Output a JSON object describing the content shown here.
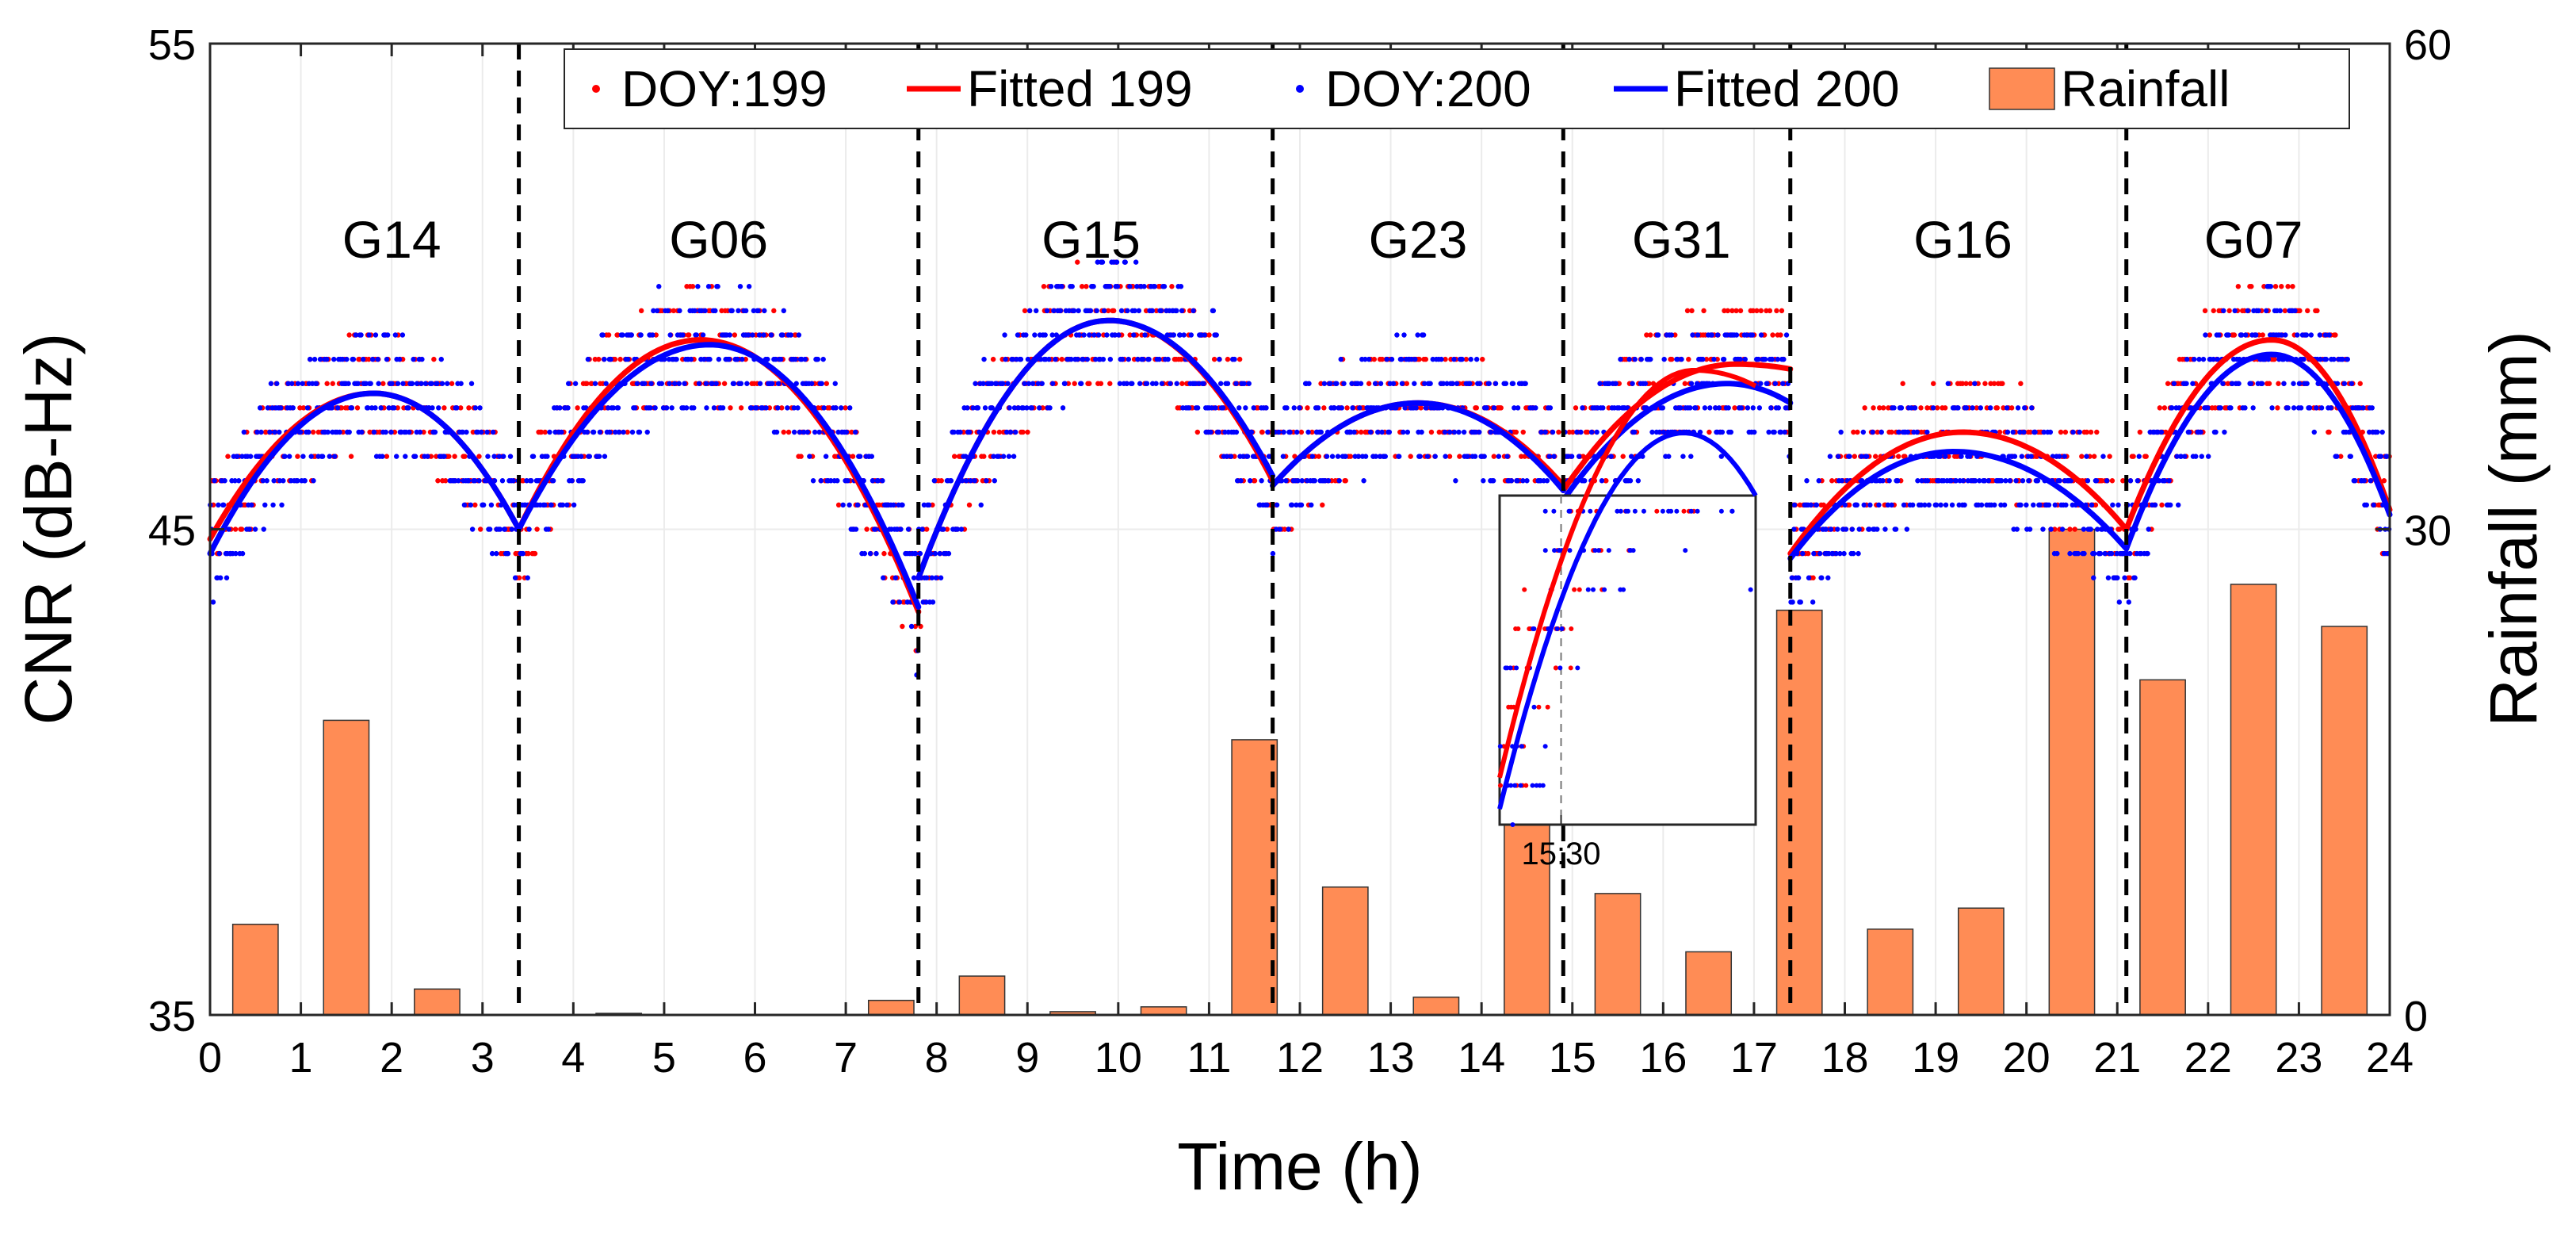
{
  "chart_data": {
    "type": "scatter+line+bar",
    "x_axis": {
      "label": "Time (h)",
      "range": [
        0,
        24
      ],
      "ticks": [
        0,
        1,
        2,
        3,
        4,
        5,
        6,
        7,
        8,
        9,
        10,
        11,
        12,
        13,
        14,
        15,
        16,
        17,
        18,
        19,
        20,
        21,
        22,
        23,
        24
      ]
    },
    "y_left": {
      "label": "CNR (dB-Hz)",
      "range": [
        35,
        55
      ],
      "ticks": [
        35,
        45,
        55
      ]
    },
    "y_right": {
      "label": "Rainfall (mm)",
      "range": [
        0,
        60
      ],
      "ticks": [
        0,
        30,
        60
      ]
    },
    "satellite_boundaries": [
      3.4,
      7.8,
      11.7,
      14.9,
      17.4,
      21.1
    ],
    "satellites": [
      {
        "label": "G14",
        "x": 2.0
      },
      {
        "label": "G06",
        "x": 5.6
      },
      {
        "label": "G15",
        "x": 9.7
      },
      {
        "label": "G23",
        "x": 13.3
      },
      {
        "label": "G31",
        "x": 16.2
      },
      {
        "label": "G16",
        "x": 19.3
      },
      {
        "label": "G07",
        "x": 22.5
      }
    ],
    "fitted_199": {
      "name": "Fitted 199",
      "color": "#ff0000",
      "segments": [
        {
          "start": 0.0,
          "end": 3.4,
          "vertex_x": 1.8,
          "peak": 47.8,
          "start_y": 44.8,
          "end_y": 45.0
        },
        {
          "start": 3.4,
          "end": 7.8,
          "vertex_x": 5.4,
          "peak": 48.9,
          "start_y": 45.0,
          "end_y": 43.3
        },
        {
          "start": 7.8,
          "end": 11.7,
          "vertex_x": 9.9,
          "peak": 49.3,
          "start_y": 44.0,
          "end_y": 46.0
        },
        {
          "start": 11.7,
          "end": 14.9,
          "vertex_x": 13.3,
          "peak": 47.6,
          "start_y": 45.9,
          "end_y": 45.9
        },
        {
          "start": 14.9,
          "end": 17.4,
          "vertex_x": 16.8,
          "peak": 48.4,
          "start_y": 45.8,
          "end_y": 48.3
        },
        {
          "start": 17.4,
          "end": 21.1,
          "vertex_x": 19.3,
          "peak": 47.0,
          "start_y": 44.5,
          "end_y": 45.0
        },
        {
          "start": 21.1,
          "end": 24.0,
          "vertex_x": 22.7,
          "peak": 48.9,
          "start_y": 45.0,
          "end_y": 45.4
        }
      ]
    },
    "fitted_200": {
      "name": "Fitted 200",
      "color": "#0000ff",
      "segments": [
        {
          "start": 0.0,
          "end": 3.4,
          "vertex_x": 1.8,
          "peak": 47.8,
          "start_y": 44.5,
          "end_y": 45.0
        },
        {
          "start": 3.4,
          "end": 7.8,
          "vertex_x": 5.5,
          "peak": 48.8,
          "start_y": 45.0,
          "end_y": 43.4
        },
        {
          "start": 7.8,
          "end": 11.7,
          "vertex_x": 9.9,
          "peak": 49.3,
          "start_y": 44.0,
          "end_y": 46.1
        },
        {
          "start": 11.7,
          "end": 14.9,
          "vertex_x": 13.3,
          "peak": 47.6,
          "start_y": 45.9,
          "end_y": 45.8
        },
        {
          "start": 14.9,
          "end": 17.4,
          "vertex_x": 16.7,
          "peak": 48.0,
          "start_y": 45.6,
          "end_y": 47.6
        },
        {
          "start": 17.4,
          "end": 21.1,
          "vertex_x": 19.2,
          "peak": 46.6,
          "start_y": 44.4,
          "end_y": 44.6
        },
        {
          "start": 21.1,
          "end": 24.0,
          "vertex_x": 22.7,
          "peak": 48.6,
          "start_y": 44.6,
          "end_y": 45.3
        }
      ]
    },
    "scatter_199": {
      "name": "DOY:199",
      "color": "#ff0000",
      "spread_db": 1.2,
      "samples_per_hour": 70
    },
    "scatter_200": {
      "name": "DOY:200",
      "color": "#0000ff",
      "spread_db": 1.3,
      "samples_per_hour": 90
    },
    "rainfall": {
      "name": "Rainfall",
      "unit": "mm",
      "color": "#ff8c55",
      "bar_width_h": 0.5,
      "bars": [
        {
          "x": 0.5,
          "value": 5.6
        },
        {
          "x": 1.5,
          "value": 18.2
        },
        {
          "x": 2.5,
          "value": 1.6
        },
        {
          "x": 4.5,
          "value": 0.1
        },
        {
          "x": 7.5,
          "value": 0.9
        },
        {
          "x": 8.5,
          "value": 2.4
        },
        {
          "x": 9.5,
          "value": 0.2
        },
        {
          "x": 10.5,
          "value": 0.5
        },
        {
          "x": 11.5,
          "value": 17.0
        },
        {
          "x": 12.5,
          "value": 7.9
        },
        {
          "x": 13.5,
          "value": 1.1
        },
        {
          "x": 14.5,
          "value": 12.8
        },
        {
          "x": 15.5,
          "value": 7.5
        },
        {
          "x": 16.5,
          "value": 3.9
        },
        {
          "x": 17.5,
          "value": 25.0
        },
        {
          "x": 18.5,
          "value": 5.3
        },
        {
          "x": 19.5,
          "value": 6.6
        },
        {
          "x": 20.5,
          "value": 30.0
        },
        {
          "x": 21.5,
          "value": 20.7
        },
        {
          "x": 22.5,
          "value": 26.6
        },
        {
          "x": 23.5,
          "value": 24.0
        }
      ]
    },
    "legend": [
      {
        "label": "DOY:199",
        "kind": "dot",
        "color": "#ff0000"
      },
      {
        "label": "Fitted 199",
        "kind": "line",
        "color": "#ff0000"
      },
      {
        "label": "DOY:200",
        "kind": "dot",
        "color": "#0000ff"
      },
      {
        "label": "Fitted 200",
        "kind": "line",
        "color": "#0000ff"
      },
      {
        "label": "Rainfall",
        "kind": "bar",
        "color": "#ff8c55"
      }
    ],
    "legend_location": "top-right",
    "inset": {
      "location": "center-right",
      "x_range": [
        14.9,
        17.4
      ],
      "y_range": [
        45.5,
        47.6
      ],
      "tick_label": "15:30",
      "tick_x": 15.5
    },
    "grid": true
  }
}
